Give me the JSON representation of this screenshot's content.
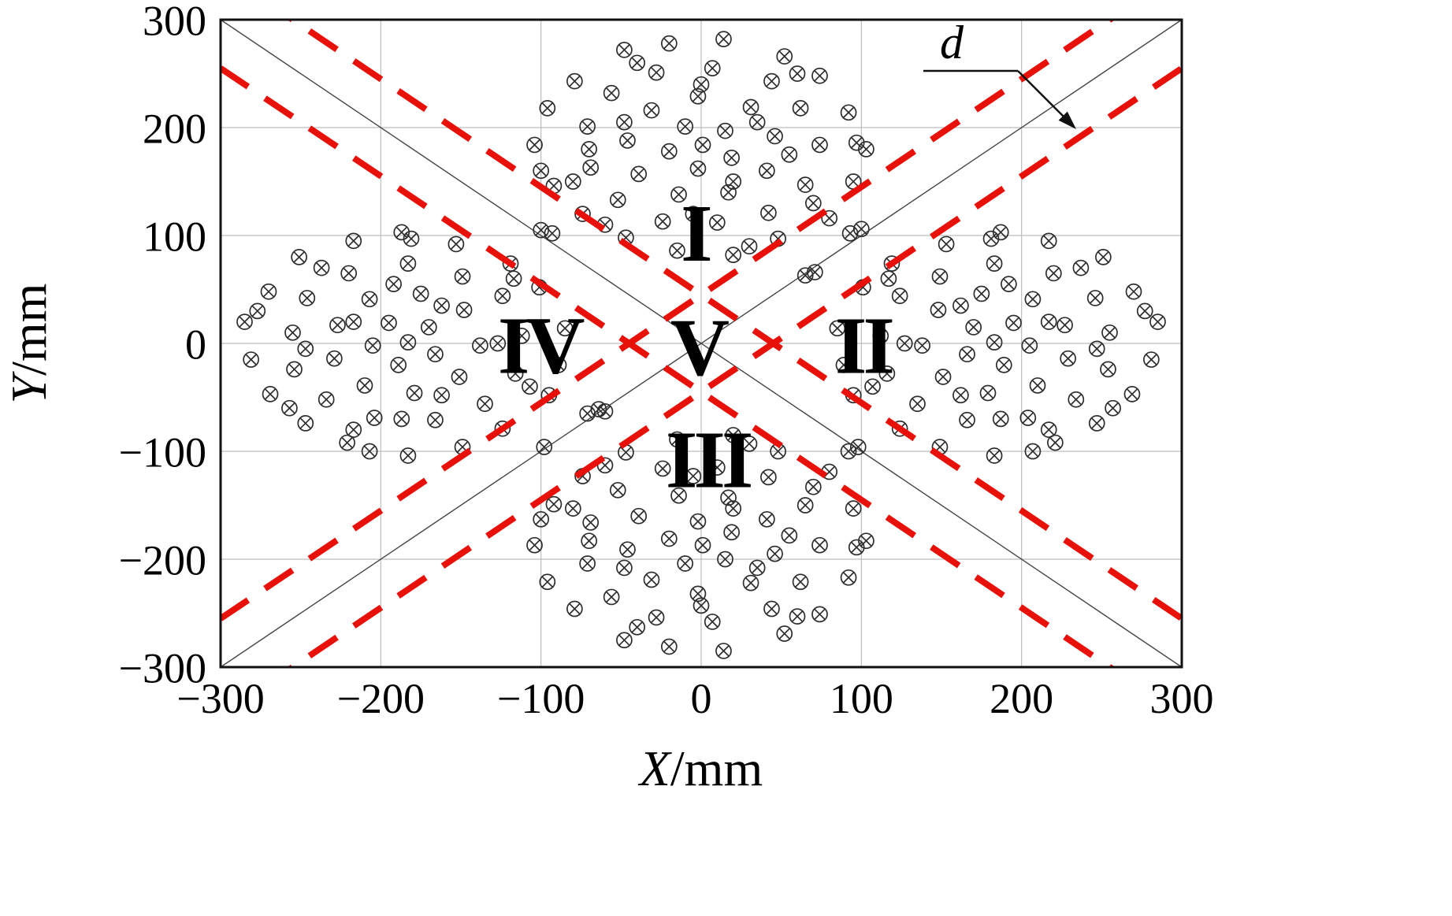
{
  "chart_data": {
    "type": "scatter",
    "title": "",
    "xlabel": "X/mm",
    "ylabel": "Y/mm",
    "xlim": [
      -300,
      300
    ],
    "ylim": [
      -300,
      300
    ],
    "grid": true,
    "marker": "circle-cross",
    "x_ticks": [
      {
        "v": -300,
        "label": "−300"
      },
      {
        "v": -200,
        "label": "−200"
      },
      {
        "v": -100,
        "label": "−100"
      },
      {
        "v": 0,
        "label": "0"
      },
      {
        "v": 100,
        "label": "100"
      },
      {
        "v": 200,
        "label": "200"
      },
      {
        "v": 300,
        "label": "300"
      }
    ],
    "y_ticks": [
      {
        "v": 300,
        "label": "300"
      },
      {
        "v": 200,
        "label": "200"
      },
      {
        "v": 100,
        "label": "100"
      },
      {
        "v": 0,
        "label": "0"
      },
      {
        "v": -100,
        "label": "−100"
      },
      {
        "v": -200,
        "label": "−200"
      },
      {
        "v": -300,
        "label": "−300"
      }
    ],
    "style": {
      "dashed_color": "#e81109",
      "dash_pattern": "42 26",
      "dashed_width": 8,
      "marker_color": "#2e2e2e",
      "grid_color": "#bdbdbd",
      "diagonal_color": "#444444",
      "frame_color": "#111111",
      "text_color": "#000000"
    },
    "diagonal_lines": [
      {
        "slope": 1,
        "intercept": 0
      },
      {
        "slope": -1,
        "intercept": 0
      }
    ],
    "dashed_lines": [
      {
        "slope": 1,
        "intercept": 45
      },
      {
        "slope": 1,
        "intercept": -45
      },
      {
        "slope": -1,
        "intercept": 45
      },
      {
        "slope": -1,
        "intercept": -45
      }
    ],
    "region_labels": [
      {
        "text": "I",
        "x": -4,
        "y": 104
      },
      {
        "text": "II",
        "x": 101,
        "y": 0
      },
      {
        "text": "III",
        "x": 4,
        "y": -106
      },
      {
        "text": "IV",
        "x": -101,
        "y": 0
      },
      {
        "text": "V",
        "x": -2,
        "y": -2
      }
    ],
    "annotation": {
      "text": "d"
    },
    "points": [
      [
        103,
        180
      ],
      [
        92,
        214
      ],
      [
        74,
        248
      ],
      [
        52,
        266
      ],
      [
        14,
        282
      ],
      [
        -20,
        278
      ],
      [
        -48,
        272
      ],
      [
        -79,
        243
      ],
      [
        -96,
        218
      ],
      [
        -104,
        184
      ],
      [
        -92,
        146
      ],
      [
        -74,
        120
      ],
      [
        -47,
        98
      ],
      [
        -15,
        86
      ],
      [
        20,
        82
      ],
      [
        48,
        97
      ],
      [
        80,
        116
      ],
      [
        95,
        150
      ],
      [
        74,
        184
      ],
      [
        62,
        218
      ],
      [
        44,
        243
      ],
      [
        7,
        255
      ],
      [
        -28,
        251
      ],
      [
        -56,
        232
      ],
      [
        -71,
        201
      ],
      [
        -69,
        163
      ],
      [
        -52,
        133
      ],
      [
        -24,
        113
      ],
      [
        10,
        112
      ],
      [
        42,
        121
      ],
      [
        65,
        147
      ],
      [
        46,
        192
      ],
      [
        31,
        219
      ],
      [
        -2,
        229
      ],
      [
        -31,
        216
      ],
      [
        -46,
        188
      ],
      [
        -39,
        157
      ],
      [
        -14,
        138
      ],
      [
        17,
        140
      ],
      [
        41,
        160
      ],
      [
        15,
        197
      ],
      [
        -10,
        201
      ],
      [
        -20,
        178
      ],
      [
        -2,
        162
      ],
      [
        19,
        172
      ],
      [
        1,
        184
      ],
      [
        97,
        186
      ],
      [
        60,
        250
      ],
      [
        -40,
        260
      ],
      [
        -100,
        160
      ],
      [
        -60,
        110
      ],
      [
        30,
        90
      ],
      [
        70,
        130
      ],
      [
        0,
        240
      ],
      [
        -70,
        180
      ],
      [
        35,
        205
      ],
      [
        -48,
        205
      ],
      [
        20,
        150
      ],
      [
        -5,
        120
      ],
      [
        55,
        175
      ],
      [
        -80,
        150
      ],
      [
        103,
        -183
      ],
      [
        92,
        -217
      ],
      [
        74,
        -251
      ],
      [
        52,
        -269
      ],
      [
        14,
        -285
      ],
      [
        -20,
        -281
      ],
      [
        -48,
        -275
      ],
      [
        -79,
        -246
      ],
      [
        -96,
        -221
      ],
      [
        -104,
        -187
      ],
      [
        -92,
        -149
      ],
      [
        -74,
        -123
      ],
      [
        -47,
        -101
      ],
      [
        -15,
        -89
      ],
      [
        20,
        -85
      ],
      [
        48,
        -100
      ],
      [
        80,
        -119
      ],
      [
        95,
        -153
      ],
      [
        74,
        -187
      ],
      [
        62,
        -221
      ],
      [
        44,
        -246
      ],
      [
        7,
        -258
      ],
      [
        -28,
        -254
      ],
      [
        -56,
        -235
      ],
      [
        -71,
        -204
      ],
      [
        -69,
        -166
      ],
      [
        -52,
        -136
      ],
      [
        -24,
        -116
      ],
      [
        10,
        -115
      ],
      [
        42,
        -124
      ],
      [
        65,
        -150
      ],
      [
        46,
        -195
      ],
      [
        31,
        -222
      ],
      [
        -2,
        -232
      ],
      [
        -31,
        -219
      ],
      [
        -46,
        -191
      ],
      [
        -39,
        -160
      ],
      [
        -14,
        -141
      ],
      [
        17,
        -143
      ],
      [
        41,
        -163
      ],
      [
        15,
        -200
      ],
      [
        -10,
        -204
      ],
      [
        -20,
        -181
      ],
      [
        -2,
        -165
      ],
      [
        19,
        -175
      ],
      [
        1,
        -187
      ],
      [
        97,
        -189
      ],
      [
        60,
        -253
      ],
      [
        -40,
        -263
      ],
      [
        -100,
        -163
      ],
      [
        -60,
        -113
      ],
      [
        30,
        -93
      ],
      [
        70,
        -133
      ],
      [
        0,
        -243
      ],
      [
        -70,
        -183
      ],
      [
        35,
        -208
      ],
      [
        -48,
        -208
      ],
      [
        20,
        -153
      ],
      [
        -5,
        -123
      ],
      [
        55,
        -178
      ],
      [
        -80,
        -153
      ],
      [
        -187,
        103
      ],
      [
        -153,
        92
      ],
      [
        -119,
        74
      ],
      [
        -101,
        52
      ],
      [
        -85,
        14
      ],
      [
        -89,
        -20
      ],
      [
        -95,
        -48
      ],
      [
        -124,
        -79
      ],
      [
        -149,
        -96
      ],
      [
        -183,
        -104
      ],
      [
        -221,
        -92
      ],
      [
        -247,
        -74
      ],
      [
        -269,
        -47
      ],
      [
        -281,
        -15
      ],
      [
        -285,
        20
      ],
      [
        -270,
        48
      ],
      [
        -251,
        80
      ],
      [
        -217,
        95
      ],
      [
        -183,
        74
      ],
      [
        -149,
        62
      ],
      [
        -124,
        44
      ],
      [
        -112,
        7
      ],
      [
        -116,
        -28
      ],
      [
        -135,
        -56
      ],
      [
        -166,
        -71
      ],
      [
        -204,
        -69
      ],
      [
        -234,
        -52
      ],
      [
        -254,
        -24
      ],
      [
        -255,
        10
      ],
      [
        -246,
        42
      ],
      [
        -220,
        65
      ],
      [
        -175,
        46
      ],
      [
        -148,
        31
      ],
      [
        -138,
        -2
      ],
      [
        -151,
        -31
      ],
      [
        -179,
        -46
      ],
      [
        -210,
        -39
      ],
      [
        -229,
        -14
      ],
      [
        -227,
        17
      ],
      [
        -207,
        41
      ],
      [
        -170,
        15
      ],
      [
        -166,
        -10
      ],
      [
        -189,
        -20
      ],
      [
        -205,
        -2
      ],
      [
        -195,
        19
      ],
      [
        -183,
        1
      ],
      [
        -181,
        97
      ],
      [
        -117,
        60
      ],
      [
        -107,
        -40
      ],
      [
        -207,
        -100
      ],
      [
        -257,
        -60
      ],
      [
        -277,
        30
      ],
      [
        -237,
        70
      ],
      [
        -127,
        0
      ],
      [
        -187,
        -70
      ],
      [
        -162,
        35
      ],
      [
        -162,
        -48
      ],
      [
        -217,
        20
      ],
      [
        -247,
        -5
      ],
      [
        -192,
        55
      ],
      [
        -217,
        -80
      ],
      [
        187,
        103
      ],
      [
        153,
        92
      ],
      [
        119,
        74
      ],
      [
        101,
        52
      ],
      [
        85,
        14
      ],
      [
        89,
        -20
      ],
      [
        95,
        -48
      ],
      [
        124,
        -79
      ],
      [
        149,
        -96
      ],
      [
        183,
        -104
      ],
      [
        221,
        -92
      ],
      [
        247,
        -74
      ],
      [
        269,
        -47
      ],
      [
        281,
        -15
      ],
      [
        285,
        20
      ],
      [
        270,
        48
      ],
      [
        251,
        80
      ],
      [
        217,
        95
      ],
      [
        183,
        74
      ],
      [
        149,
        62
      ],
      [
        124,
        44
      ],
      [
        112,
        7
      ],
      [
        116,
        -28
      ],
      [
        135,
        -56
      ],
      [
        166,
        -71
      ],
      [
        204,
        -69
      ],
      [
        234,
        -52
      ],
      [
        254,
        -24
      ],
      [
        255,
        10
      ],
      [
        246,
        42
      ],
      [
        220,
        65
      ],
      [
        175,
        46
      ],
      [
        148,
        31
      ],
      [
        138,
        -2
      ],
      [
        151,
        -31
      ],
      [
        179,
        -46
      ],
      [
        210,
        -39
      ],
      [
        229,
        -14
      ],
      [
        227,
        17
      ],
      [
        207,
        41
      ],
      [
        170,
        15
      ],
      [
        166,
        -10
      ],
      [
        189,
        -20
      ],
      [
        205,
        -2
      ],
      [
        195,
        19
      ],
      [
        183,
        1
      ],
      [
        181,
        97
      ],
      [
        117,
        60
      ],
      [
        107,
        -40
      ],
      [
        207,
        -100
      ],
      [
        257,
        -60
      ],
      [
        277,
        30
      ],
      [
        237,
        70
      ],
      [
        127,
        0
      ],
      [
        187,
        -70
      ],
      [
        162,
        35
      ],
      [
        162,
        -48
      ],
      [
        217,
        20
      ],
      [
        247,
        -5
      ],
      [
        192,
        55
      ],
      [
        217,
        -80
      ],
      [
        -100,
        105
      ],
      [
        -93,
        102
      ],
      [
        100,
        106
      ],
      [
        93,
        102
      ],
      [
        65,
        63
      ],
      [
        71,
        66
      ],
      [
        -64,
        -61
      ],
      [
        -71,
        -65
      ],
      [
        98,
        -96
      ],
      [
        92,
        -100
      ],
      [
        -98,
        -96
      ],
      [
        -60,
        -63
      ]
    ]
  }
}
